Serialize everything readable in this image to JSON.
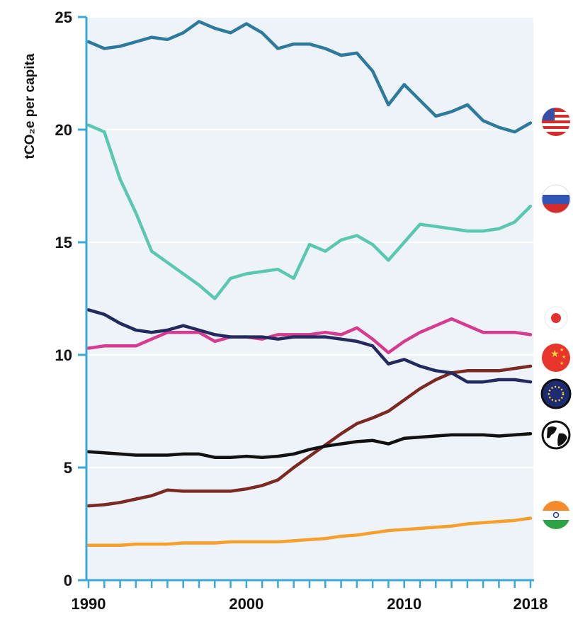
{
  "chart_data": {
    "type": "line",
    "ylabel": "tCO₂e per capita",
    "ylim": [
      0,
      25
    ],
    "xlim": [
      1990,
      2018
    ],
    "y_ticks": [
      "0",
      "5",
      "10",
      "15",
      "20",
      "25"
    ],
    "x_ticks": [
      "1990",
      "2000",
      "2010",
      "2018"
    ],
    "grid": "horizontal",
    "legend": "flag icons at right end of lines",
    "x": [
      1990,
      1991,
      1992,
      1993,
      1994,
      1995,
      1996,
      1997,
      1998,
      1999,
      2000,
      2001,
      2002,
      2003,
      2004,
      2005,
      2006,
      2007,
      2008,
      2009,
      2010,
      2011,
      2012,
      2013,
      2014,
      2015,
      2016,
      2017,
      2018
    ],
    "series": [
      {
        "flag": "usa-flag-icon",
        "color": "#2e7a9c",
        "values": [
          23.9,
          23.6,
          23.7,
          23.9,
          24.1,
          24.0,
          24.3,
          24.8,
          24.5,
          24.3,
          24.7,
          24.3,
          23.6,
          23.8,
          23.8,
          23.6,
          23.3,
          23.4,
          22.6,
          21.1,
          22.0,
          21.3,
          20.6,
          20.8,
          21.1,
          20.4,
          20.1,
          19.9,
          20.3
        ]
      },
      {
        "flag": "russia-flag-icon",
        "color": "#5ac8b0",
        "values": [
          20.2,
          19.9,
          17.8,
          16.3,
          14.6,
          14.1,
          13.6,
          13.1,
          12.5,
          13.4,
          13.6,
          13.7,
          13.8,
          13.4,
          14.9,
          14.6,
          15.1,
          15.3,
          14.9,
          14.2,
          15.0,
          15.8,
          15.7,
          15.6,
          15.5,
          15.5,
          15.6,
          15.9,
          16.6
        ]
      },
      {
        "flag": "japan-flag-icon",
        "color": "#d63a91",
        "values": [
          10.3,
          10.4,
          10.4,
          10.4,
          10.7,
          11.0,
          11.0,
          11.0,
          10.6,
          10.8,
          10.8,
          10.7,
          10.9,
          10.9,
          10.9,
          11.0,
          10.9,
          11.2,
          10.7,
          10.1,
          10.6,
          11.0,
          11.3,
          11.6,
          11.3,
          11.0,
          11.0,
          11.0,
          10.9
        ]
      },
      {
        "flag": "china-flag-icon",
        "color": "#7a2a22",
        "values": [
          3.3,
          3.35,
          3.45,
          3.6,
          3.75,
          4.0,
          3.95,
          3.95,
          3.95,
          3.95,
          4.05,
          4.2,
          4.45,
          5.0,
          5.5,
          6.0,
          6.5,
          6.95,
          7.2,
          7.5,
          8.0,
          8.5,
          8.9,
          9.2,
          9.3,
          9.3,
          9.3,
          9.4,
          9.5
        ]
      },
      {
        "flag": "eu-flag-icon",
        "color": "#232a5e",
        "values": [
          12.0,
          11.8,
          11.4,
          11.1,
          11.0,
          11.1,
          11.3,
          11.1,
          10.9,
          10.8,
          10.8,
          10.8,
          10.7,
          10.8,
          10.8,
          10.8,
          10.7,
          10.6,
          10.4,
          9.6,
          9.8,
          9.5,
          9.3,
          9.2,
          8.8,
          8.8,
          8.9,
          8.9,
          8.8
        ]
      },
      {
        "flag": "globe-icon",
        "color": "#111111",
        "values": [
          5.7,
          5.65,
          5.6,
          5.55,
          5.55,
          5.55,
          5.6,
          5.6,
          5.45,
          5.45,
          5.5,
          5.45,
          5.5,
          5.6,
          5.8,
          5.95,
          6.05,
          6.15,
          6.2,
          6.05,
          6.3,
          6.35,
          6.4,
          6.45,
          6.45,
          6.45,
          6.4,
          6.45,
          6.5
        ]
      },
      {
        "flag": "india-flag-icon",
        "color": "#f5a02c",
        "values": [
          1.55,
          1.55,
          1.55,
          1.6,
          1.6,
          1.6,
          1.65,
          1.65,
          1.65,
          1.7,
          1.7,
          1.7,
          1.7,
          1.75,
          1.8,
          1.85,
          1.95,
          2.0,
          2.1,
          2.2,
          2.25,
          2.3,
          2.35,
          2.4,
          2.5,
          2.55,
          2.6,
          2.65,
          2.75
        ]
      }
    ]
  }
}
